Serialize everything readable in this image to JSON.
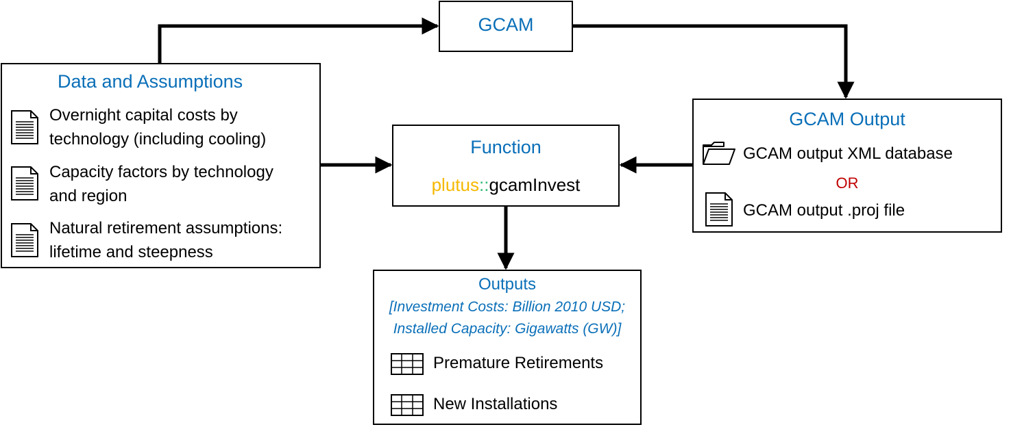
{
  "gcam": {
    "title": "GCAM"
  },
  "data_assumptions": {
    "title": "Data and Assumptions",
    "items": [
      {
        "icon": "document-icon",
        "line1": "Overnight capital costs by",
        "line2": "technology (including cooling)"
      },
      {
        "icon": "document-icon",
        "line1": "Capacity factors by technology",
        "line2": "and region"
      },
      {
        "icon": "document-icon",
        "line1": "Natural retirement assumptions:",
        "line2": "lifetime and steepness"
      }
    ]
  },
  "function": {
    "title": "Function",
    "package": "plutus",
    "separator": "::",
    "name": "gcamInvest"
  },
  "gcam_output": {
    "title": "GCAM Output",
    "option1": {
      "icon": "folder-icon",
      "label": "GCAM output XML database"
    },
    "or_label": "OR",
    "option2": {
      "icon": "document-icon",
      "label": "GCAM output .proj file"
    }
  },
  "outputs": {
    "title": "Outputs",
    "units_line1": "[Investment Costs: Billion 2010 USD;",
    "units_line2": "Installed Capacity: Gigawatts (GW)]",
    "items": [
      {
        "icon": "table-icon",
        "label": "Premature Retirements"
      },
      {
        "icon": "table-icon",
        "label": "New Installations"
      }
    ]
  },
  "colors": {
    "title_blue": "#0a6fb8",
    "or_red": "#c00000",
    "package_yellow": "#f5b800",
    "separator_green": "#2eb872"
  }
}
